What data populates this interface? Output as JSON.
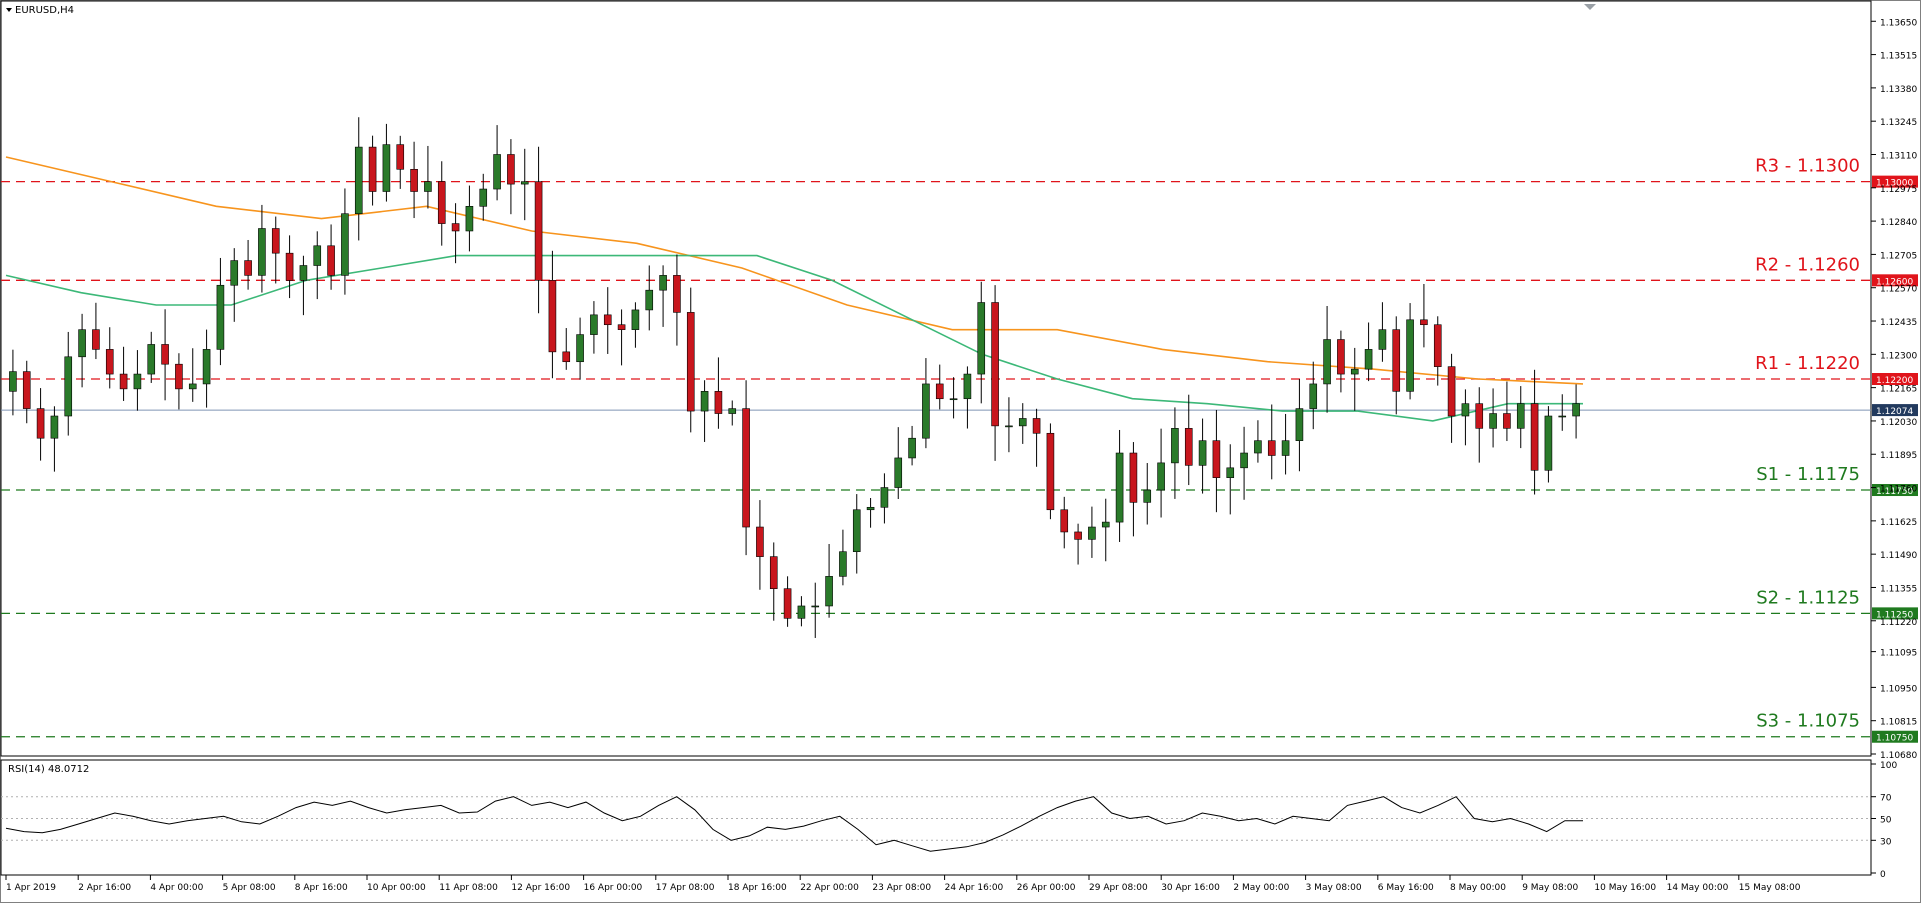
{
  "chart_title": "EURUSD,H4",
  "rsi_label": "RSI(14) 48.0712",
  "colors": {
    "bull": "#2a7a2a",
    "bear": "#c8161d",
    "ma_fast": "#3cb878",
    "ma_slow": "#f7941d",
    "resistance": "#e0141b",
    "support": "#1f7a1f",
    "current": "#7f94b5",
    "rsi_line": "#000000"
  },
  "chart_data": {
    "type": "candlestick",
    "symbol": "EURUSD",
    "timeframe": "H4",
    "ylim": [
      1.1068,
      1.1372
    ],
    "y_ticks": [
      "1.13650",
      "1.13515",
      "1.13380",
      "1.13245",
      "1.13110",
      "1.12975",
      "1.12840",
      "1.12705",
      "1.12570",
      "1.12435",
      "1.12300",
      "1.12165",
      "1.12030",
      "1.11895",
      "1.11760",
      "1.11625",
      "1.11490",
      "1.11355",
      "1.11220",
      "1.11095",
      "1.10950",
      "1.10815",
      "1.10680"
    ],
    "x_ticks": [
      "1 Apr 2019",
      "2 Apr 16:00",
      "4 Apr 00:00",
      "5 Apr 08:00",
      "8 Apr 16:00",
      "10 Apr 00:00",
      "11 Apr 08:00",
      "12 Apr 16:00",
      "16 Apr 00:00",
      "17 Apr 08:00",
      "18 Apr 16:00",
      "22 Apr 00:00",
      "23 Apr 08:00",
      "24 Apr 16:00",
      "26 Apr 00:00",
      "29 Apr 08:00",
      "30 Apr 16:00",
      "2 May 00:00",
      "3 May 08:00",
      "6 May 16:00",
      "8 May 00:00",
      "9 May 08:00",
      "10 May 16:00",
      "14 May 00:00",
      "15 May 08:00"
    ],
    "current_price": 1.12074,
    "current_label": "1.12074",
    "levels": [
      {
        "name": "R3",
        "label": "R3 - 1.1300",
        "value": 1.13,
        "price_label": "1.13000",
        "kind": "resistance"
      },
      {
        "name": "R2",
        "label": "R2 - 1.1260",
        "value": 1.126,
        "price_label": "1.12600",
        "kind": "resistance"
      },
      {
        "name": "R1",
        "label": "R1 - 1.1220",
        "value": 1.122,
        "price_label": "1.12200",
        "kind": "resistance"
      },
      {
        "name": "S1",
        "label": "S1 - 1.1175",
        "value": 1.1175,
        "price_label": "1.11750",
        "kind": "support"
      },
      {
        "name": "S2",
        "label": "S2 - 1.1125",
        "value": 1.1125,
        "price_label": "1.11250",
        "kind": "support"
      },
      {
        "name": "S3",
        "label": "S3 - 1.1075",
        "value": 1.1075,
        "price_label": "1.10750",
        "kind": "support"
      }
    ],
    "close_path": [
      1.1223,
      1.1208,
      1.1196,
      1.1205,
      1.1229,
      1.124,
      1.1232,
      1.1222,
      1.1216,
      1.1222,
      1.1234,
      1.1226,
      1.1216,
      1.1218,
      1.1232,
      1.1258,
      1.1268,
      1.1262,
      1.1281,
      1.1271,
      1.126,
      1.1266,
      1.1274,
      1.1262,
      1.1287,
      1.1314,
      1.1296,
      1.1315,
      1.1305,
      1.1296,
      1.13,
      1.1283,
      1.128,
      1.129,
      1.1297,
      1.1311,
      1.1299,
      1.13,
      1.126,
      1.1231,
      1.1227,
      1.1238,
      1.1246,
      1.1242,
      1.124,
      1.1248,
      1.1256,
      1.1262,
      1.1247,
      1.1207,
      1.1215,
      1.1206,
      1.1208,
      1.116,
      1.1148,
      1.1135,
      1.1123,
      1.1128,
      1.1128,
      1.114,
      1.115,
      1.1167,
      1.1168,
      1.1176,
      1.1188,
      1.1196,
      1.1218,
      1.1212,
      1.1212,
      1.1222,
      1.1251,
      1.1201,
      1.1201,
      1.1204,
      1.1198,
      1.1167,
      1.1158,
      1.1155,
      1.116,
      1.1162,
      1.119,
      1.117,
      1.1175,
      1.1186,
      1.12,
      1.1185,
      1.1195,
      1.118,
      1.1184,
      1.119,
      1.1195,
      1.1189,
      1.1195,
      1.1208,
      1.1218,
      1.1236,
      1.1222,
      1.1224,
      1.1232,
      1.124,
      1.1215,
      1.1244,
      1.1242,
      1.1225,
      1.1205,
      1.121,
      1.12,
      1.1206,
      1.12,
      1.121,
      1.1183,
      1.1205,
      1.1205,
      1.121
    ],
    "ma_fast_path": [
      1.1262,
      1.1255,
      1.125,
      1.125,
      1.126,
      1.1265,
      1.127,
      1.127,
      1.127,
      1.127,
      1.127,
      1.126,
      1.1245,
      1.123,
      1.122,
      1.1212,
      1.121,
      1.1207,
      1.1207,
      1.1203,
      1.121,
      1.121
    ],
    "ma_slow_path": [
      1.131,
      1.13,
      1.129,
      1.1285,
      1.129,
      1.128,
      1.1275,
      1.1265,
      1.125,
      1.124,
      1.124,
      1.1232,
      1.1227,
      1.1224,
      1.122,
      1.1218
    ],
    "rsi": {
      "period": 14,
      "last_value": 48.0712,
      "ylim": [
        0,
        100
      ],
      "y_ticks": [
        "100",
        "70",
        "50",
        "30",
        "0"
      ],
      "levels": [
        70,
        50,
        30
      ],
      "values": [
        41,
        38,
        37,
        40,
        45,
        50,
        55,
        52,
        48,
        45,
        48,
        50,
        52,
        47,
        45,
        52,
        60,
        65,
        62,
        66,
        60,
        55,
        58,
        60,
        62,
        55,
        56,
        66,
        70,
        62,
        65,
        60,
        65,
        55,
        48,
        52,
        62,
        70,
        58,
        40,
        30,
        34,
        42,
        40,
        43,
        48,
        52,
        40,
        26,
        30,
        25,
        20,
        22,
        24,
        28,
        35,
        43,
        52,
        60,
        66,
        70,
        55,
        50,
        52,
        45,
        48,
        55,
        52,
        48,
        50,
        45,
        52,
        50,
        48,
        62,
        66,
        70,
        60,
        55,
        62,
        70,
        50,
        47,
        50,
        45,
        38,
        48,
        48
      ]
    }
  }
}
